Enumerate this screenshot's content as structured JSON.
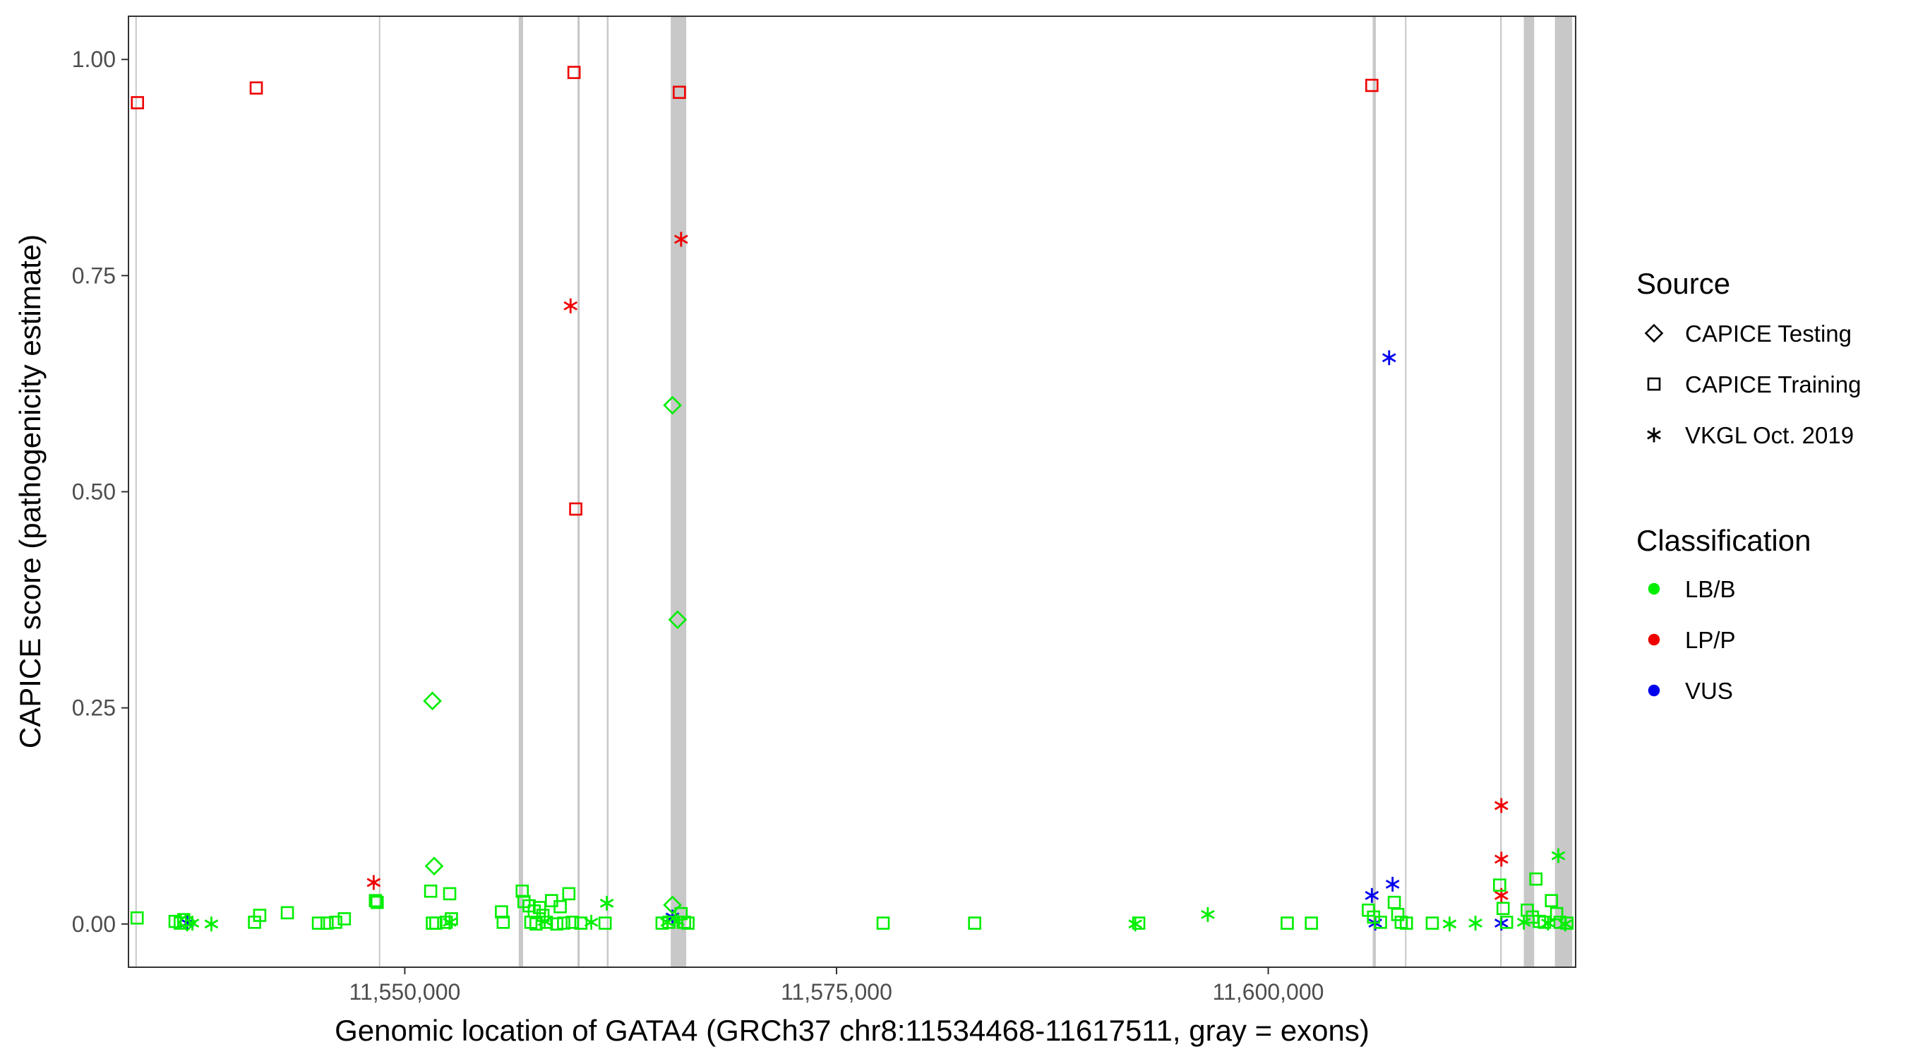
{
  "chart_data": {
    "type": "scatter",
    "title": "",
    "xlabel": "Genomic location of GATA4 (GRCh37 chr8:11534468-11617511, gray = exons)",
    "ylabel": "CAPICE score (pathogenicity estimate)",
    "xlim": [
      11534000,
      11617800
    ],
    "ylim": [
      -0.05,
      1.05
    ],
    "x_ticks": [
      11550000,
      11575000,
      11600000
    ],
    "x_tick_labels": [
      "11,550,000",
      "11,575,000",
      "11,600,000"
    ],
    "y_ticks": [
      0,
      0.25,
      0.5,
      0.75,
      1.0
    ],
    "y_tick_labels": [
      "0.00",
      "0.25",
      "0.50",
      "0.75",
      "1.00"
    ],
    "grid": false,
    "exons": [
      [
        11534400,
        11534480
      ],
      [
        11548500,
        11548560
      ],
      [
        11556600,
        11556850
      ],
      [
        11560000,
        11560130
      ],
      [
        11561700,
        11561800
      ],
      [
        11565400,
        11566300
      ],
      [
        11606050,
        11606230
      ],
      [
        11607920,
        11608000
      ],
      [
        11613430,
        11613520
      ],
      [
        11614800,
        11615400
      ],
      [
        11616600,
        11617600
      ]
    ],
    "legend": {
      "position": "right",
      "source_title": "Source",
      "source_entries": [
        {
          "label": "CAPICE Testing",
          "shape": "diamond"
        },
        {
          "label": "CAPICE Training",
          "shape": "square"
        },
        {
          "label": "VKGL Oct. 2019",
          "shape": "asterisk"
        }
      ],
      "class_title": "Classification",
      "class_entries": [
        {
          "label": "LB/B",
          "color": "#00ee00"
        },
        {
          "label": "LP/P",
          "color": "#ee0000"
        },
        {
          "label": "VUS",
          "color": "#0000ee"
        }
      ]
    },
    "series": [
      {
        "source": "CAPICE Training",
        "classification": "LP/P",
        "points": [
          [
            11534520,
            0.95
          ],
          [
            11541400,
            0.967
          ],
          [
            11559800,
            0.985
          ],
          [
            11565900,
            0.962
          ],
          [
            11559900,
            0.48
          ],
          [
            11606000,
            0.97
          ]
        ]
      },
      {
        "source": "VKGL Oct. 2019",
        "classification": "LP/P",
        "points": [
          [
            11559600,
            0.715
          ],
          [
            11566000,
            0.792
          ],
          [
            11548200,
            0.048
          ],
          [
            11613500,
            0.137
          ],
          [
            11613500,
            0.075
          ],
          [
            11613500,
            0.033
          ]
        ]
      },
      {
        "source": "VKGL Oct. 2019",
        "classification": "VUS",
        "points": [
          [
            11607000,
            0.655
          ],
          [
            11606000,
            0.033
          ],
          [
            11607200,
            0.046
          ],
          [
            11537400,
            0.001
          ],
          [
            11565500,
            0.008
          ],
          [
            11606200,
            0.001
          ],
          [
            11613500,
            0.001
          ]
        ]
      },
      {
        "source": "CAPICE Testing",
        "classification": "LB/B",
        "points": [
          [
            11565500,
            0.6
          ],
          [
            11565800,
            0.352
          ],
          [
            11551600,
            0.258
          ],
          [
            11551700,
            0.067
          ],
          [
            11565500,
            0.022
          ],
          [
            11537400,
            0.002
          ]
        ]
      },
      {
        "source": "VKGL Oct. 2019",
        "classification": "LB/B",
        "points": [
          [
            11537700,
            0.001
          ],
          [
            11538800,
            0.0
          ],
          [
            11552600,
            0.002
          ],
          [
            11558100,
            0.003
          ],
          [
            11560800,
            0.002
          ],
          [
            11561700,
            0.024
          ],
          [
            11565800,
            0.003
          ],
          [
            11565200,
            0.002
          ],
          [
            11592300,
            0.0
          ],
          [
            11596500,
            0.011
          ],
          [
            11610500,
            0.0
          ],
          [
            11612000,
            0.001
          ],
          [
            11614800,
            0.002
          ],
          [
            11616800,
            0.079
          ],
          [
            11617200,
            0.0
          ],
          [
            11616200,
            0.001
          ]
        ]
      },
      {
        "source": "CAPICE Training",
        "classification": "LB/B",
        "points": [
          [
            11534500,
            0.007
          ],
          [
            11536700,
            0.003
          ],
          [
            11537200,
            0.005
          ],
          [
            11537000,
            0.001
          ],
          [
            11541300,
            0.002
          ],
          [
            11541600,
            0.01
          ],
          [
            11543200,
            0.013
          ],
          [
            11545000,
            0.001
          ],
          [
            11545500,
            0.001
          ],
          [
            11546000,
            0.002
          ],
          [
            11546500,
            0.006
          ],
          [
            11548300,
            0.027
          ],
          [
            11548400,
            0.025
          ],
          [
            11551500,
            0.038
          ],
          [
            11552600,
            0.035
          ],
          [
            11552700,
            0.006
          ],
          [
            11551600,
            0.001
          ],
          [
            11551800,
            0.001
          ],
          [
            11552400,
            0.002
          ],
          [
            11555600,
            0.014
          ],
          [
            11555700,
            0.002
          ],
          [
            11556800,
            0.038
          ],
          [
            11556900,
            0.026
          ],
          [
            11557200,
            0.021
          ],
          [
            11557500,
            0.015
          ],
          [
            11557800,
            0.019
          ],
          [
            11558000,
            0.01
          ],
          [
            11558500,
            0.027
          ],
          [
            11559000,
            0.02
          ],
          [
            11559500,
            0.035
          ],
          [
            11557300,
            0.002
          ],
          [
            11557600,
            0.0
          ],
          [
            11558200,
            0.002
          ],
          [
            11558800,
            0.0
          ],
          [
            11559200,
            0.001
          ],
          [
            11559700,
            0.002
          ],
          [
            11560200,
            0.001
          ],
          [
            11561600,
            0.001
          ],
          [
            11564900,
            0.001
          ],
          [
            11565300,
            0.002
          ],
          [
            11566000,
            0.012
          ],
          [
            11566200,
            0.002
          ],
          [
            11566400,
            0.001
          ],
          [
            11577700,
            0.001
          ],
          [
            11583000,
            0.001
          ],
          [
            11592500,
            0.001
          ],
          [
            11601100,
            0.001
          ],
          [
            11602500,
            0.001
          ],
          [
            11605800,
            0.016
          ],
          [
            11606100,
            0.008
          ],
          [
            11606500,
            0.002
          ],
          [
            11607300,
            0.025
          ],
          [
            11607500,
            0.011
          ],
          [
            11607700,
            0.002
          ],
          [
            11608000,
            0.001
          ],
          [
            11609500,
            0.001
          ],
          [
            11613400,
            0.045
          ],
          [
            11613600,
            0.018
          ],
          [
            11613800,
            0.002
          ],
          [
            11615000,
            0.016
          ],
          [
            11615300,
            0.008
          ],
          [
            11615500,
            0.052
          ],
          [
            11615700,
            0.003
          ],
          [
            11616000,
            0.002
          ],
          [
            11616400,
            0.027
          ],
          [
            11616700,
            0.012
          ],
          [
            11616900,
            0.002
          ],
          [
            11617300,
            0.001
          ]
        ]
      }
    ]
  }
}
